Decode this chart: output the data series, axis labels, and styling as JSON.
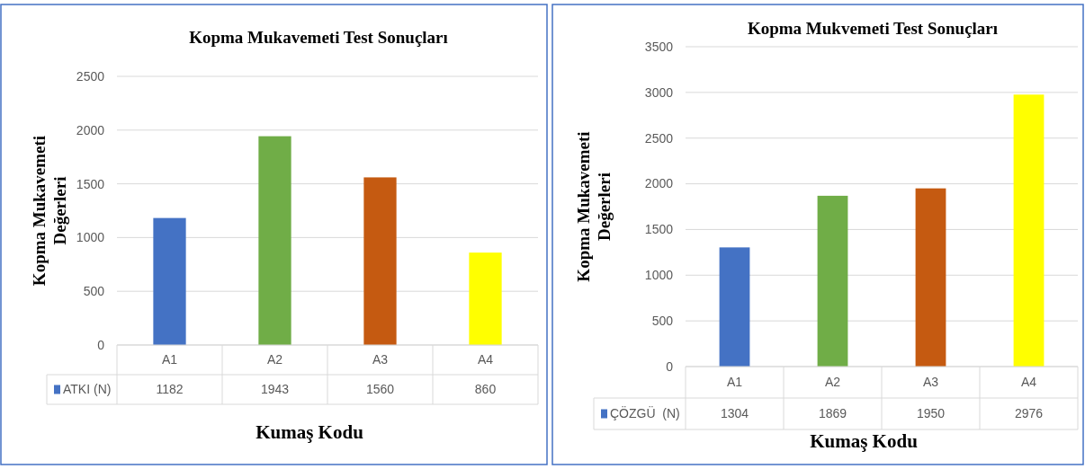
{
  "chart_data": [
    {
      "type": "bar",
      "title": "Kopma Mukavemeti Test Sonuçları",
      "xlabel": "Kumaş Kodu",
      "ylabel": "Kopma Mukavemeti\nDeğerleri",
      "categories": [
        "A1",
        "A2",
        "A3",
        "A4"
      ],
      "series": [
        {
          "name": "ATKI (N)",
          "colors": [
            "#4472c4",
            "#70ad47",
            "#c55a11",
            "#ffff00"
          ],
          "values": [
            1182,
            1943,
            1560,
            860
          ]
        }
      ],
      "ylim": [
        0,
        2500
      ],
      "yticks": [
        0,
        500,
        1000,
        1500,
        2000,
        2500
      ],
      "grid": "y",
      "data_labels": true,
      "legend": "bottom left"
    },
    {
      "type": "bar",
      "title": "Kopma Mukvemeti Test Sonuçları",
      "xlabel": "Kumaş Kodu",
      "ylabel": "Kopma Mukavemeti\nDeğerleri",
      "categories": [
        "A1",
        "A2",
        "A3",
        "A4"
      ],
      "series": [
        {
          "name": "ÇÖZGÜ  (N)",
          "colors": [
            "#4472c4",
            "#70ad47",
            "#c55a11",
            "#ffff00"
          ],
          "values": [
            1304,
            1869,
            1950,
            2976
          ]
        }
      ],
      "ylim": [
        0,
        3500
      ],
      "yticks": [
        0,
        500,
        1000,
        1500,
        2000,
        2500,
        3000,
        3500
      ],
      "grid": "y",
      "data_labels": true,
      "legend": "bottom left"
    }
  ]
}
